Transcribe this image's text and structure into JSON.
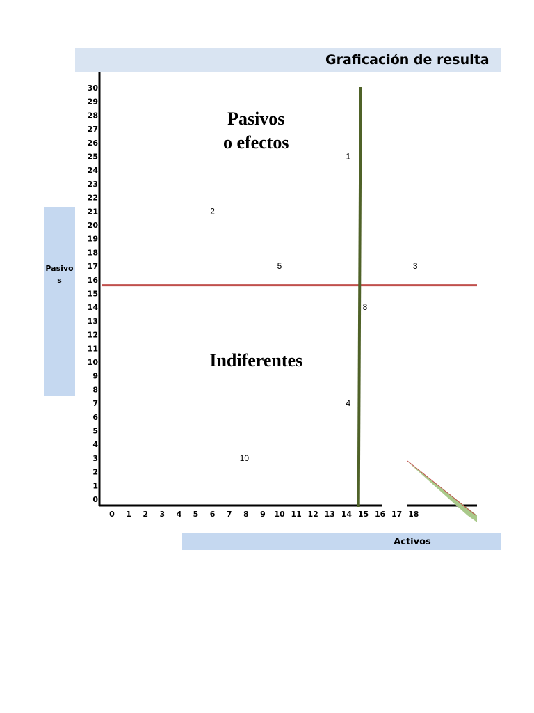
{
  "chart_data": {
    "type": "scatter",
    "title": "Graficación de resulta",
    "xlabel": "Activos",
    "ylabel": "Pasivos",
    "xlim": [
      0,
      18
    ],
    "ylim": [
      0,
      30
    ],
    "x_ticks": [
      "0",
      "1",
      "2",
      "3",
      "4",
      "5",
      "6",
      "7",
      "8",
      "9",
      "10",
      "11",
      "12",
      "13",
      "14",
      "15",
      "16",
      "17",
      "18"
    ],
    "y_ticks": [
      "0",
      "1",
      "2",
      "3",
      "4",
      "5",
      "6",
      "7",
      "8",
      "9",
      "10",
      "11",
      "12",
      "13",
      "14",
      "15",
      "16",
      "17",
      "18",
      "19",
      "20",
      "21",
      "22",
      "23",
      "24",
      "25",
      "26",
      "27",
      "28",
      "29",
      "30"
    ],
    "points": [
      {
        "label": "1",
        "x": 14.1,
        "y": 25
      },
      {
        "label": "2",
        "x": 6,
        "y": 21
      },
      {
        "label": "3",
        "x": 18.1,
        "y": 17
      },
      {
        "label": "4",
        "x": 14.1,
        "y": 7
      },
      {
        "label": "5",
        "x": 10,
        "y": 17
      },
      {
        "label": "8",
        "x": 15.1,
        "y": 14
      },
      {
        "label": "10",
        "x": 7.9,
        "y": 3
      }
    ],
    "vline": {
      "x": 14.8,
      "color": "#4f6228"
    },
    "hline": {
      "y": 15.6,
      "color": "#c0504d"
    },
    "quadrants": [
      {
        "lines": [
          "Pasivos",
          "o efectos"
        ],
        "x": 8.6,
        "y": 27.3
      },
      {
        "lines": [
          "Indiferentes"
        ],
        "x": 8.6,
        "y": 9.7
      }
    ],
    "grid": false,
    "legend": "none"
  }
}
